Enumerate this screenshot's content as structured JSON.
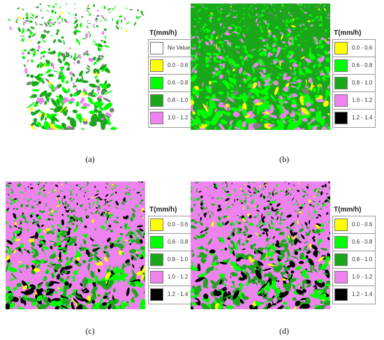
{
  "legend_title": "T(mm/h)",
  "classes": {
    "nv": {
      "label": "No Value",
      "color": "#ffffff"
    },
    "c1": {
      "label": "0.0 - 0.6",
      "color": "#ffff00"
    },
    "c2": {
      "label": "0.6 - 0.8",
      "color": "#00ff00"
    },
    "c3": {
      "label": "0.8 - 1.0",
      "color": "#1aa81a"
    },
    "c4": {
      "label": "1.0 - 1.2",
      "color": "#ee82ee"
    },
    "c5": {
      "label": "1.2 - 1.4",
      "color": "#000000"
    }
  },
  "panels": [
    {
      "caption": "(a)",
      "legend": [
        "nv",
        "c1",
        "c2",
        "c3",
        "c4"
      ],
      "mix": {
        "bg": "#ffffff",
        "blobs": [
          [
            "#1aa81a",
            0.45
          ],
          [
            "#00ff00",
            0.3
          ],
          [
            "#ee82ee",
            0.15
          ],
          [
            "#ffff00",
            0.05
          ],
          [
            "#808080",
            0.05
          ]
        ]
      }
    },
    {
      "caption": "(b)",
      "legend": [
        "c1",
        "c2",
        "c3",
        "c4",
        "c5"
      ],
      "mix": {
        "bg": "#1aa81a",
        "blobs": [
          [
            "#00ff00",
            0.45
          ],
          [
            "#ee82ee",
            0.25
          ],
          [
            "#1aa81a",
            0.2
          ],
          [
            "#ffff00",
            0.05
          ],
          [
            "#808080",
            0.05
          ]
        ]
      }
    },
    {
      "caption": "(c)",
      "legend": [
        "c1",
        "c2",
        "c3",
        "c4",
        "c5"
      ],
      "mix": {
        "bg": "#ee82ee",
        "blobs": [
          [
            "#1aa81a",
            0.35
          ],
          [
            "#00ff00",
            0.25
          ],
          [
            "#000000",
            0.2
          ],
          [
            "#ee82ee",
            0.15
          ],
          [
            "#ffff00",
            0.05
          ]
        ]
      }
    },
    {
      "caption": "(d)",
      "legend": [
        "c1",
        "c2",
        "c3",
        "c4",
        "c5"
      ],
      "mix": {
        "bg": "#ee82ee",
        "blobs": [
          [
            "#1aa81a",
            0.38
          ],
          [
            "#000000",
            0.25
          ],
          [
            "#00ff00",
            0.17
          ],
          [
            "#ee82ee",
            0.15
          ],
          [
            "#ffff00",
            0.05
          ]
        ]
      }
    }
  ]
}
